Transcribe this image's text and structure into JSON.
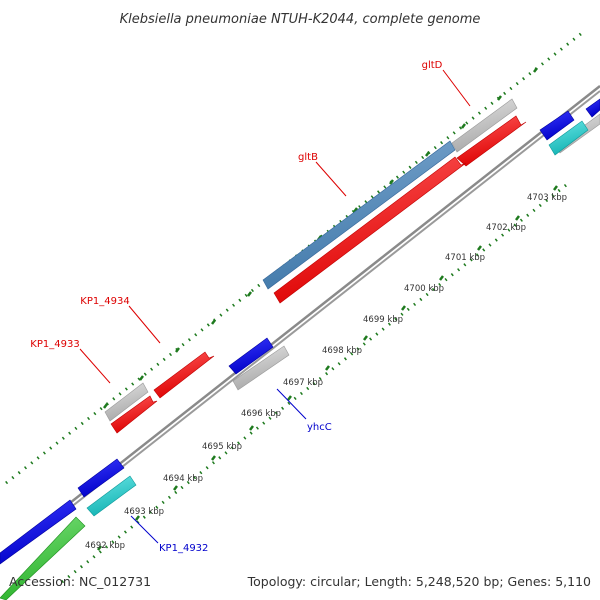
{
  "title": "Klebsiella pneumoniae NTUH-K2044, complete genome",
  "footer": {
    "accession": "Accession: NC_012731",
    "summary": "Topology: circular; Length: 5,248,520 bp; Genes: 5,110"
  },
  "ruler": {
    "ticks": [
      "4692 kbp",
      "4693 kbp",
      "4694 kbp",
      "4695 kbp",
      "4696 kbp",
      "4697 kbp",
      "4698 kbp",
      "4699 kbp",
      "4700 kbp",
      "4701 kbp",
      "4702 kbp",
      "4703 kbp"
    ]
  },
  "labels": {
    "gltD": "gltD",
    "gltB": "gltB",
    "KP1_4934": "KP1_4934",
    "KP1_4933": "KP1_4933",
    "yhcC": "yhcC",
    "KP1_4932": "KP1_4932"
  },
  "colors": {
    "forward_cds": "#ff0000",
    "reverse_cds": "#0000ee",
    "gene_feature": "#4d87b8",
    "gray_feature": "#c4c4c4",
    "cyan_feature": "#20c8c8",
    "green_feature": "#3cc83c",
    "backbone": "#8c8c8c",
    "ticks": "#1e7a1e",
    "red_label": "#dd0000",
    "blue_label": "#0000cc"
  }
}
